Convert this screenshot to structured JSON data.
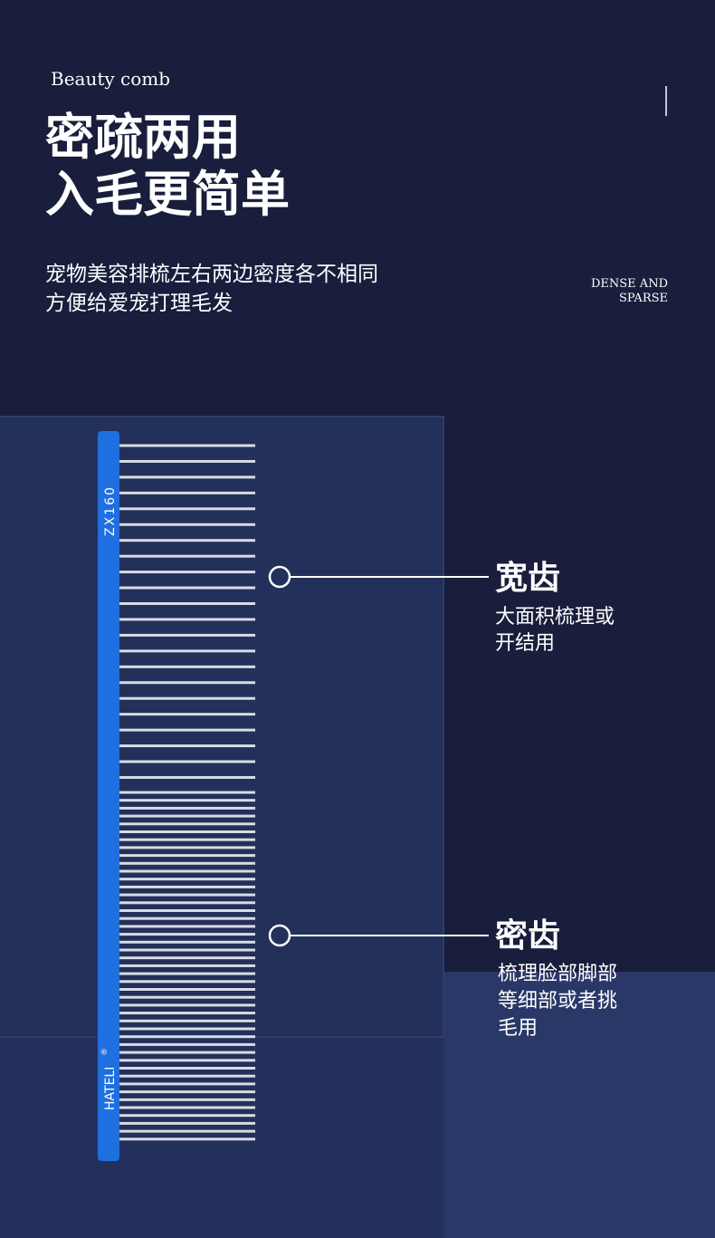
{
  "header": {
    "eyebrow": "Beauty comb",
    "title": [
      "密疏两用",
      "入毛更简单"
    ],
    "subtitle": [
      "宠物美容排梳左右两边密度各不相同",
      "方便给爱宠打理毛发"
    ],
    "tag": [
      "DENSE AND",
      "SPARSE"
    ]
  },
  "comb": {
    "model": "ZX160",
    "brand": "HATELI",
    "mark": "®"
  },
  "callouts": [
    {
      "title": "宽齿",
      "lines": [
        "大面积梳理或",
        "开结用"
      ]
    },
    {
      "title": "密齿",
      "lines": [
        "梳理脸部脚部",
        "等细部或者挑",
        "毛用"
      ]
    }
  ]
}
